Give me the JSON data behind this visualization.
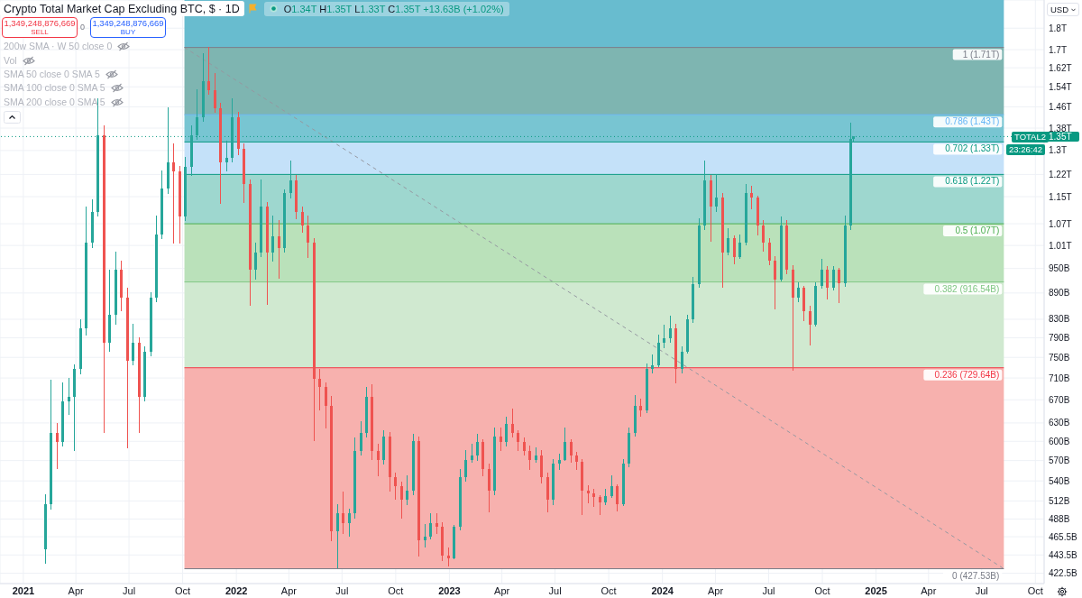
{
  "chart_data": {
    "type": "candlestick",
    "title": "Crypto Total Market Cap Excluding BTC, $ · 1D",
    "subtitle": "O1.34T H1.35T L1.33T C1.35T +13.63B (+1.02%)",
    "x": [
      "2021-02-08",
      "2021-02-18",
      "2021-02-28",
      "2021-03-10",
      "2021-03-20",
      "2021-03-30",
      "2021-04-09",
      "2021-04-19",
      "2021-04-29",
      "2021-05-09",
      "2021-05-19",
      "2021-05-29",
      "2021-06-08",
      "2021-06-18",
      "2021-06-28",
      "2021-07-08",
      "2021-07-18",
      "2021-07-28",
      "2021-08-07",
      "2021-08-17",
      "2021-08-27",
      "2021-09-06",
      "2021-09-16",
      "2021-09-26",
      "2021-10-06",
      "2021-10-16",
      "2021-10-26",
      "2021-11-05",
      "2021-11-15",
      "2021-11-25",
      "2021-12-05",
      "2021-12-15",
      "2021-12-25",
      "2022-01-04",
      "2022-01-14",
      "2022-01-24",
      "2022-02-03",
      "2022-02-13",
      "2022-02-23",
      "2022-03-05",
      "2022-03-15",
      "2022-03-25",
      "2022-04-04",
      "2022-04-14",
      "2022-04-24",
      "2022-05-04",
      "2022-05-14",
      "2022-05-24",
      "2022-06-03",
      "2022-06-13",
      "2022-06-23",
      "2022-07-03",
      "2022-07-13",
      "2022-07-23",
      "2022-08-02",
      "2022-08-12",
      "2022-08-22",
      "2022-09-01",
      "2022-09-11",
      "2022-09-21",
      "2022-10-01",
      "2022-10-11",
      "2022-10-21",
      "2022-10-31",
      "2022-11-10",
      "2022-11-20",
      "2022-11-30",
      "2022-12-10",
      "2022-12-20",
      "2022-12-30",
      "2023-01-09",
      "2023-01-19",
      "2023-01-29",
      "2023-02-08",
      "2023-02-18",
      "2023-02-28",
      "2023-03-10",
      "2023-03-20",
      "2023-03-30",
      "2023-04-09",
      "2023-04-19",
      "2023-04-29",
      "2023-05-09",
      "2023-05-19",
      "2023-05-29",
      "2023-06-08",
      "2023-06-18",
      "2023-06-28",
      "2023-07-08",
      "2023-07-18",
      "2023-07-28",
      "2023-08-07",
      "2023-08-17",
      "2023-08-27",
      "2023-09-06",
      "2023-09-16",
      "2023-09-26",
      "2023-10-06",
      "2023-10-16",
      "2023-10-26",
      "2023-11-05",
      "2023-11-15",
      "2023-11-25",
      "2023-12-05",
      "2023-12-15",
      "2023-12-25",
      "2024-01-04",
      "2024-01-14",
      "2024-01-24",
      "2024-02-03",
      "2024-02-13",
      "2024-02-23",
      "2024-03-04",
      "2024-03-14",
      "2024-03-24",
      "2024-04-03",
      "2024-04-13",
      "2024-04-23",
      "2024-05-03",
      "2024-05-13",
      "2024-05-23",
      "2024-06-02",
      "2024-06-12",
      "2024-06-22",
      "2024-07-02",
      "2024-07-12",
      "2024-07-22",
      "2024-08-01",
      "2024-08-11",
      "2024-08-21",
      "2024-08-31",
      "2024-09-10",
      "2024-09-20",
      "2024-09-30",
      "2024-10-10",
      "2024-10-20",
      "2024-10-30",
      "2024-11-09",
      "2024-11-19",
      "2024-11-23"
    ],
    "ohlc": [
      [
        450000000000.0,
        520000000000.0,
        434000000000.0,
        507000000000.0
      ],
      [
        507000000000.0,
        706000000000.0,
        501000000000.0,
        614000000000.0
      ],
      [
        614000000000.0,
        629000000000.0,
        558000000000.0,
        599000000000.0
      ],
      [
        599000000000.0,
        701000000000.0,
        592000000000.0,
        668000000000.0
      ],
      [
        668000000000.0,
        709000000000.0,
        644000000000.0,
        676000000000.0
      ],
      [
        676000000000.0,
        735000000000.0,
        585000000000.0,
        727000000000.0
      ],
      [
        727000000000.0,
        829000000000.0,
        718000000000.0,
        810000000000.0
      ],
      [
        810000000000.0,
        1119000000000.0,
        796000000000.0,
        1017000000000.0
      ],
      [
        1017000000000.0,
        1141000000000.0,
        1004000000000.0,
        1105000000000.0
      ],
      [
        1105000000000.0,
        1491000000000.0,
        1092000000000.0,
        1355000000000.0
      ],
      [
        1355000000000.0,
        1388000000000.0,
        614000000000.0,
        780000000000.0
      ],
      [
        780000000000.0,
        946000000000.0,
        762000000000.0,
        839000000000.0
      ],
      [
        839000000000.0,
        992000000000.0,
        819000000000.0,
        946000000000.0
      ],
      [
        946000000000.0,
        969000000000.0,
        849000000000.0,
        880000000000.0
      ],
      [
        880000000000.0,
        902000000000.0,
        589000000000.0,
        744000000000.0
      ],
      [
        744000000000.0,
        819000000000.0,
        735000000000.0,
        780000000000.0
      ],
      [
        780000000000.0,
        790000000000.0,
        614000000000.0,
        676000000000.0
      ],
      [
        676000000000.0,
        771000000000.0,
        668000000000.0,
        762000000000.0
      ],
      [
        762000000000.0,
        891000000000.0,
        753000000000.0,
        880000000000.0
      ],
      [
        880000000000.0,
        1092000000000.0,
        870000000000.0,
        1041000000000.0
      ],
      [
        1041000000000.0,
        1231000000000.0,
        1029000000000.0,
        1174000000000.0
      ],
      [
        1174000000000.0,
        1456000000000.0,
        1160000000000.0,
        1261000000000.0
      ],
      [
        1261000000000.0,
        1323000000000.0,
        1017000000000.0,
        1231000000000.0
      ],
      [
        1231000000000.0,
        1246000000000.0,
        1017000000000.0,
        1092000000000.0
      ],
      [
        1092000000000.0,
        1276000000000.0,
        1079000000000.0,
        1246000000000.0
      ],
      [
        1246000000000.0,
        1388000000000.0,
        1216000000000.0,
        1355000000000.0
      ],
      [
        1355000000000.0,
        1528000000000.0,
        1339000000000.0,
        1421000000000.0
      ],
      [
        1421000000000.0,
        1682000000000.0,
        1405000000000.0,
        1565000000000.0
      ],
      [
        1565000000000.0,
        1710000000000.0,
        1509000000000.0,
        1528000000000.0
      ],
      [
        1528000000000.0,
        1595000000000.0,
        1438000000000.0,
        1456000000000.0
      ],
      [
        1456000000000.0,
        1473000000000.0,
        1130000000000.0,
        1261000000000.0
      ],
      [
        1261000000000.0,
        1332000000000.0,
        1231000000000.0,
        1276000000000.0
      ],
      [
        1276000000000.0,
        1491000000000.0,
        1261000000000.0,
        1421000000000.0
      ],
      [
        1421000000000.0,
        1438000000000.0,
        1286000000000.0,
        1307000000000.0
      ],
      [
        1307000000000.0,
        1323000000000.0,
        1132000000000.0,
        1188000000000.0
      ],
      [
        1188000000000.0,
        1202000000000.0,
        862000000000.0,
        946000000000.0
      ],
      [
        946000000000.0,
        1017000000000.0,
        923000000000.0,
        992000000000.0
      ],
      [
        992000000000.0,
        1202000000000.0,
        980000000000.0,
        1119000000000.0
      ],
      [
        1119000000000.0,
        1132000000000.0,
        863000000000.0,
        992000000000.0
      ],
      [
        992000000000.0,
        1092000000000.0,
        969000000000.0,
        1036000000000.0
      ],
      [
        1036000000000.0,
        1079000000000.0,
        925000000000.0,
        1004000000000.0
      ],
      [
        1004000000000.0,
        1171000000000.0,
        992000000000.0,
        1160000000000.0
      ],
      [
        1160000000000.0,
        1264000000000.0,
        1146000000000.0,
        1202000000000.0
      ],
      [
        1202000000000.0,
        1216000000000.0,
        1084000000000.0,
        1105000000000.0
      ],
      [
        1105000000000.0,
        1119000000000.0,
        1046000000000.0,
        1066000000000.0
      ],
      [
        1066000000000.0,
        1092000000000.0,
        977000000000.0,
        1017000000000.0
      ],
      [
        1017000000000.0,
        1029000000000.0,
        601000000000.0,
        709000000000.0
      ],
      [
        709000000000.0,
        727000000000.0,
        652000000000.0,
        693000000000.0
      ],
      [
        693000000000.0,
        701000000000.0,
        621000000000.0,
        660000000000.0
      ],
      [
        660000000000.0,
        676000000000.0,
        461000000000.0,
        472000000000.0
      ],
      [
        472000000000.0,
        507000000000.0,
        429000000000.0,
        495000000000.0
      ],
      [
        495000000000.0,
        524000000000.0,
        469000000000.0,
        483000000000.0
      ],
      [
        483000000000.0,
        501000000000.0,
        466000000000.0,
        495000000000.0
      ],
      [
        495000000000.0,
        605000000000.0,
        489000000000.0,
        585000000000.0
      ],
      [
        585000000000.0,
        632000000000.0,
        578000000000.0,
        614000000000.0
      ],
      [
        614000000000.0,
        693000000000.0,
        607000000000.0,
        676000000000.0
      ],
      [
        676000000000.0,
        698000000000.0,
        571000000000.0,
        585000000000.0
      ],
      [
        585000000000.0,
        595000000000.0,
        547000000000.0,
        571000000000.0
      ],
      [
        571000000000.0,
        617000000000.0,
        565000000000.0,
        607000000000.0
      ],
      [
        607000000000.0,
        614000000000.0,
        525000000000.0,
        545000000000.0
      ],
      [
        545000000000.0,
        551000000000.0,
        514000000000.0,
        532000000000.0
      ],
      [
        532000000000.0,
        538000000000.0,
        489000000000.0,
        514000000000.0
      ],
      [
        514000000000.0,
        547000000000.0,
        507000000000.0,
        526000000000.0
      ],
      [
        526000000000.0,
        611000000000.0,
        520000000000.0,
        600000000000.0
      ],
      [
        600000000000.0,
        607000000000.0,
        442000000000.0,
        461000000000.0
      ],
      [
        461000000000.0,
        481000000000.0,
        453000000000.0,
        466000000000.0
      ],
      [
        466000000000.0,
        495000000000.0,
        463000000000.0,
        483000000000.0
      ],
      [
        483000000000.0,
        495000000000.0,
        469000000000.0,
        478000000000.0
      ],
      [
        478000000000.0,
        483000000000.0,
        437000000000.0,
        443000000000.0
      ],
      [
        443000000000.0,
        452000000000.0,
        431000000000.0,
        440000000000.0
      ],
      [
        440000000000.0,
        480000000000.0,
        439000000000.0,
        478000000000.0
      ],
      [
        478000000000.0,
        557000000000.0,
        474000000000.0,
        545000000000.0
      ],
      [
        545000000000.0,
        585000000000.0,
        539000000000.0,
        571000000000.0
      ],
      [
        571000000000.0,
        595000000000.0,
        567000000000.0,
        578000000000.0
      ],
      [
        578000000000.0,
        611000000000.0,
        570000000000.0,
        599000000000.0
      ],
      [
        599000000000.0,
        602000000000.0,
        547000000000.0,
        558000000000.0
      ],
      [
        558000000000.0,
        565000000000.0,
        497000000000.0,
        526000000000.0
      ],
      [
        526000000000.0,
        621000000000.0,
        520000000000.0,
        607000000000.0
      ],
      [
        607000000000.0,
        621000000000.0,
        585000000000.0,
        599000000000.0
      ],
      [
        599000000000.0,
        640000000000.0,
        592000000000.0,
        629000000000.0
      ],
      [
        629000000000.0,
        653000000000.0,
        607000000000.0,
        614000000000.0
      ],
      [
        614000000000.0,
        617000000000.0,
        585000000000.0,
        599000000000.0
      ],
      [
        599000000000.0,
        605000000000.0,
        579000000000.0,
        585000000000.0
      ],
      [
        585000000000.0,
        592000000000.0,
        557000000000.0,
        571000000000.0
      ],
      [
        571000000000.0,
        590000000000.0,
        567000000000.0,
        578000000000.0
      ],
      [
        578000000000.0,
        585000000000.0,
        537000000000.0,
        545000000000.0
      ],
      [
        545000000000.0,
        551000000000.0,
        497000000000.0,
        514000000000.0
      ],
      [
        514000000000.0,
        572000000000.0,
        507000000000.0,
        565000000000.0
      ],
      [
        565000000000.0,
        580000000000.0,
        557000000000.0,
        571000000000.0
      ],
      [
        571000000000.0,
        621000000000.0,
        570000000000.0,
        599000000000.0
      ],
      [
        599000000000.0,
        602000000000.0,
        567000000000.0,
        578000000000.0
      ],
      [
        578000000000.0,
        582000000000.0,
        557000000000.0,
        568000000000.0
      ],
      [
        568000000000.0,
        571000000000.0,
        494000000000.0,
        526000000000.0
      ],
      [
        526000000000.0,
        533000000000.0,
        510000000000.0,
        522000000000.0
      ],
      [
        522000000000.0,
        528000000000.0,
        505000000000.0,
        517000000000.0
      ],
      [
        517000000000.0,
        519000000000.0,
        494000000000.0,
        510000000000.0
      ],
      [
        510000000000.0,
        528000000000.0,
        507000000000.0,
        519000000000.0
      ],
      [
        519000000000.0,
        547000000000.0,
        517000000000.0,
        532000000000.0
      ],
      [
        532000000000.0,
        534000000000.0,
        499000000000.0,
        507000000000.0
      ],
      [
        507000000000.0,
        572000000000.0,
        506000000000.0,
        565000000000.0
      ],
      [
        565000000000.0,
        621000000000.0,
        561000000000.0,
        614000000000.0
      ],
      [
        614000000000.0,
        678000000000.0,
        609000000000.0,
        660000000000.0
      ],
      [
        660000000000.0,
        671000000000.0,
        641000000000.0,
        652000000000.0
      ],
      [
        652000000000.0,
        737000000000.0,
        648000000000.0,
        727000000000.0
      ],
      [
        727000000000.0,
        755000000000.0,
        720000000000.0,
        735000000000.0
      ],
      [
        735000000000.0,
        795000000000.0,
        732000000000.0,
        780000000000.0
      ],
      [
        780000000000.0,
        817000000000.0,
        769000000000.0,
        790000000000.0
      ],
      [
        790000000000.0,
        837000000000.0,
        780000000000.0,
        810000000000.0
      ],
      [
        810000000000.0,
        819000000000.0,
        701000000000.0,
        727000000000.0
      ],
      [
        727000000000.0,
        771000000000.0,
        720000000000.0,
        762000000000.0
      ],
      [
        762000000000.0,
        839000000000.0,
        758000000000.0,
        829000000000.0
      ],
      [
        829000000000.0,
        927000000000.0,
        823000000000.0,
        911000000000.0
      ],
      [
        911000000000.0,
        1084000000000.0,
        904000000000.0,
        1066000000000.0
      ],
      [
        1066000000000.0,
        1264000000000.0,
        1054000000000.0,
        1202000000000.0
      ],
      [
        1202000000000.0,
        1216000000000.0,
        1021000000000.0,
        1119000000000.0
      ],
      [
        1119000000000.0,
        1221000000000.0,
        1105000000000.0,
        1146000000000.0
      ],
      [
        1146000000000.0,
        1160000000000.0,
        904000000000.0,
        992000000000.0
      ],
      [
        992000000000.0,
        1056000000000.0,
        985000000000.0,
        1029000000000.0
      ],
      [
        1029000000000.0,
        1036000000000.0,
        962000000000.0,
        980000000000.0
      ],
      [
        980000000000.0,
        1038000000000.0,
        975000000000.0,
        1017000000000.0
      ],
      [
        1017000000000.0,
        1188000000000.0,
        1011000000000.0,
        1160000000000.0
      ],
      [
        1160000000000.0,
        1182000000000.0,
        1113000000000.0,
        1146000000000.0
      ],
      [
        1146000000000.0,
        1152000000000.0,
        1038000000000.0,
        1066000000000.0
      ],
      [
        1066000000000.0,
        1079000000000.0,
        994000000000.0,
        1017000000000.0
      ],
      [
        1017000000000.0,
        1029000000000.0,
        960000000000.0,
        969000000000.0
      ],
      [
        969000000000.0,
        980000000000.0,
        853000000000.0,
        923000000000.0
      ],
      [
        923000000000.0,
        1089000000000.0,
        918000000000.0,
        1066000000000.0
      ],
      [
        1066000000000.0,
        1079000000000.0,
        937000000000.0,
        946000000000.0
      ],
      [
        946000000000.0,
        958000000000.0,
        725000000000.0,
        880000000000.0
      ],
      [
        880000000000.0,
        915000000000.0,
        870000000000.0,
        902000000000.0
      ],
      [
        902000000000.0,
        906000000000.0,
        827000000000.0,
        849000000000.0
      ],
      [
        849000000000.0,
        859000000000.0,
        776000000000.0,
        819000000000.0
      ],
      [
        819000000000.0,
        915000000000.0,
        815000000000.0,
        906000000000.0
      ],
      [
        906000000000.0,
        973000000000.0,
        902000000000.0,
        946000000000.0
      ],
      [
        946000000000.0,
        955000000000.0,
        876000000000.0,
        902000000000.0
      ],
      [
        902000000000.0,
        955000000000.0,
        897000000000.0,
        946000000000.0
      ],
      [
        946000000000.0,
        950000000000.0,
        868000000000.0,
        913000000000.0
      ],
      [
        913000000000.0,
        1092000000000.0,
        906000000000.0,
        1066000000000.0
      ],
      [
        1066000000000.0,
        1398000000000.0,
        1054000000000.0,
        1340000000000.0
      ],
      [
        1340000000000.0,
        1350000000000.0,
        1330000000000.0,
        1349248876669
      ]
    ],
    "colors": [
      "#26a69a",
      "#26a69a",
      "#ef5350",
      "#26a69a",
      "#26a69a",
      "#26a69a",
      "#26a69a",
      "#26a69a",
      "#26a69a",
      "#26a69a",
      "#ef5350",
      "#26a69a",
      "#26a69a",
      "#ef5350",
      "#ef5350",
      "#26a69a",
      "#ef5350",
      "#26a69a",
      "#26a69a",
      "#26a69a",
      "#26a69a",
      "#26a69a",
      "#ef5350",
      "#ef5350",
      "#26a69a",
      "#26a69a",
      "#26a69a",
      "#26a69a",
      "#ef5350",
      "#ef5350",
      "#ef5350",
      "#26a69a",
      "#26a69a",
      "#ef5350",
      "#ef5350",
      "#ef5350",
      "#26a69a",
      "#26a69a",
      "#ef5350",
      "#26a69a",
      "#ef5350",
      "#26a69a",
      "#26a69a",
      "#ef5350",
      "#ef5350",
      "#ef5350",
      "#ef5350",
      "#ef5350",
      "#ef5350",
      "#ef5350",
      "#26a69a",
      "#ef5350",
      "#26a69a",
      "#26a69a",
      "#26a69a",
      "#26a69a",
      "#ef5350",
      "#ef5350",
      "#26a69a",
      "#ef5350",
      "#ef5350",
      "#ef5350",
      "#26a69a",
      "#26a69a",
      "#ef5350",
      "#26a69a",
      "#26a69a",
      "#ef5350",
      "#ef5350",
      "#ef5350",
      "#26a69a",
      "#26a69a",
      "#26a69a",
      "#26a69a",
      "#26a69a",
      "#ef5350",
      "#ef5350",
      "#26a69a",
      "#ef5350",
      "#26a69a",
      "#ef5350",
      "#ef5350",
      "#ef5350",
      "#ef5350",
      "#26a69a",
      "#ef5350",
      "#ef5350",
      "#26a69a",
      "#26a69a",
      "#26a69a",
      "#ef5350",
      "#ef5350",
      "#ef5350",
      "#ef5350",
      "#ef5350",
      "#ef5350",
      "#26a69a",
      "#26a69a",
      "#ef5350",
      "#26a69a",
      "#26a69a",
      "#26a69a",
      "#ef5350",
      "#26a69a",
      "#26a69a",
      "#26a69a",
      "#26a69a",
      "#26a69a",
      "#ef5350",
      "#26a69a",
      "#26a69a",
      "#26a69a",
      "#26a69a",
      "#26a69a",
      "#ef5350",
      "#26a69a",
      "#ef5350",
      "#26a69a",
      "#ef5350",
      "#26a69a",
      "#26a69a",
      "#ef5350",
      "#ef5350",
      "#ef5350",
      "#ef5350",
      "#ef5350",
      "#26a69a",
      "#ef5350",
      "#ef5350",
      "#26a69a",
      "#ef5350",
      "#ef5350",
      "#26a69a",
      "#26a69a",
      "#ef5350",
      "#26a69a",
      "#ef5350",
      "#26a69a",
      "#26a69a",
      "#26a69a"
    ],
    "series": [
      {
        "type": "line",
        "x": [
          "2021-10-04",
          "2025-08-08"
        ],
        "values": [
          1710000000000.0,
          427530000000.0
        ],
        "color": "#9598a1",
        "line_style": "dashed"
      }
    ],
    "xlim": [
      "2020-11-22",
      "2025-10-16"
    ],
    "xticks": [
      {
        "value": "2021-01-01",
        "label": "2021"
      },
      {
        "value": "2021-04-01",
        "label": "Apr"
      },
      {
        "value": "2021-07-01",
        "label": "Jul"
      },
      {
        "value": "2021-10-01",
        "label": "Oct"
      },
      {
        "value": "2022-01-01",
        "label": "2022"
      },
      {
        "value": "2022-04-01",
        "label": "Apr"
      },
      {
        "value": "2022-07-01",
        "label": "Jul"
      },
      {
        "value": "2022-10-01",
        "label": "Oct"
      },
      {
        "value": "2023-01-01",
        "label": "2023"
      },
      {
        "value": "2023-04-01",
        "label": "Apr"
      },
      {
        "value": "2023-07-01",
        "label": "Jul"
      },
      {
        "value": "2023-10-01",
        "label": "Oct"
      },
      {
        "value": "2024-01-01",
        "label": "2024"
      },
      {
        "value": "2024-04-01",
        "label": "Apr"
      },
      {
        "value": "2024-07-01",
        "label": "Jul"
      },
      {
        "value": "2024-10-01",
        "label": "Oct"
      },
      {
        "value": "2025-01-01",
        "label": "2025"
      },
      {
        "value": "2025-04-01",
        "label": "Apr"
      },
      {
        "value": "2025-07-01",
        "label": "Jul"
      },
      {
        "value": "2025-10-01",
        "label": "Oct"
      }
    ],
    "ylim": [
      411000000000.0,
      1940000000000.0
    ],
    "yticks": [
      {
        "value": 422500000000.0,
        "label": "422.5B"
      },
      {
        "value": 443500000000.0,
        "label": "443.5B"
      },
      {
        "value": 465500000000.0,
        "label": "465.5B"
      },
      {
        "value": 488000000000.0,
        "label": "488B"
      },
      {
        "value": 512000000000.0,
        "label": "512B"
      },
      {
        "value": 540000000000.0,
        "label": "540B"
      },
      {
        "value": 570000000000.0,
        "label": "570B"
      },
      {
        "value": 600000000000.0,
        "label": "600B"
      },
      {
        "value": 630000000000.0,
        "label": "630B"
      },
      {
        "value": 670000000000.0,
        "label": "670B"
      },
      {
        "value": 710000000000.0,
        "label": "710B"
      },
      {
        "value": 750000000000.0,
        "label": "750B"
      },
      {
        "value": 790000000000.0,
        "label": "790B"
      },
      {
        "value": 830000000000.0,
        "label": "830B"
      },
      {
        "value": 890000000000.0,
        "label": "890B"
      },
      {
        "value": 950000000000.0,
        "label": "950B"
      },
      {
        "value": 1010000000000.0,
        "label": "1.01T"
      },
      {
        "value": 1070000000000.0,
        "label": "1.07T"
      },
      {
        "value": 1150000000000.0,
        "label": "1.15T"
      },
      {
        "value": 1220000000000.0,
        "label": "1.22T"
      },
      {
        "value": 1300000000000.0,
        "label": "1.3T"
      },
      {
        "value": 1380000000000.0,
        "label": "1.38T"
      },
      {
        "value": 1460000000000.0,
        "label": "1.46T"
      },
      {
        "value": 1540000000000.0,
        "label": "1.54T"
      },
      {
        "value": 1620000000000.0,
        "label": "1.62T"
      },
      {
        "value": 1700000000000.0,
        "label": "1.7T"
      },
      {
        "value": 1800000000000.0,
        "label": "1.8T"
      }
    ],
    "log": true,
    "grid": true,
    "bands": [
      {
        "axis": "y",
        "from": 427530000000.0,
        "to": 729640000000.0,
        "color": "#f7b1ae"
      },
      {
        "axis": "y",
        "from": 729640000000.0,
        "to": 916540000000.0,
        "color": "#d0e9d0"
      },
      {
        "axis": "y",
        "from": 916540000000.0,
        "to": 1070000000000.0,
        "color": "#bae1ba"
      },
      {
        "axis": "y",
        "from": 1070000000000.0,
        "to": 1220000000000.0,
        "color": "#9ed7cf"
      },
      {
        "axis": "y",
        "from": 1220000000000.0,
        "to": 1330000000000.0,
        "color": "#c4e1f9"
      },
      {
        "axis": "y",
        "from": 1330000000000.0,
        "to": 1430000000000.0,
        "color": "#78c5d2"
      },
      {
        "axis": "y",
        "from": 1430000000000.0,
        "to": 1710000000000.0,
        "color": "#7eb5b1"
      },
      {
        "axis": "y",
        "from": 1710000000000.0,
        "to": 1940000000000.0,
        "color": "#68bccf"
      }
    ],
    "ref_lines": [
      {
        "axis": "y",
        "value": 1710000000000.0,
        "label": "1 (1.71T)",
        "color": "#787b86"
      },
      {
        "axis": "y",
        "value": 1430000000000.0,
        "label": "0.786 (1.43T)",
        "color": "#64b5f6"
      },
      {
        "axis": "y",
        "value": 1330000000000.0,
        "label": "0.702 (1.33T)",
        "color": "#089981"
      },
      {
        "axis": "y",
        "value": 1220000000000.0,
        "label": "0.618 (1.22T)",
        "color": "#089981"
      },
      {
        "axis": "y",
        "value": 1070000000000.0,
        "label": "0.5 (1.07T)",
        "color": "#4caf50"
      },
      {
        "axis": "y",
        "value": 916540000000.0,
        "label": "0.382 (916.54B)",
        "color": "#81c784"
      },
      {
        "axis": "y",
        "value": 729640000000.0,
        "label": "0.236 (729.64B)",
        "color": "#f23645"
      },
      {
        "axis": "y",
        "value": 427530000000.0,
        "label": "0 (427.53B)",
        "color": "#787b86"
      },
      {
        "axis": "y",
        "value": 1349248876669,
        "label": "1.35T",
        "color": "#089981",
        "line_style": "dotted"
      }
    ],
    "annotations": [
      "1,349,248,876,669",
      "SELL",
      "0",
      "1,349,248,876,669",
      "BUY",
      "200w SMA · W 50 close 0",
      "Vol",
      "SMA 50 close 0 SMA 5",
      "SMA 100 close 0 SMA 5",
      "SMA 200 close 0 SMA 5",
      "USD",
      "TOTAL2",
      "23:26:42"
    ]
  }
}
